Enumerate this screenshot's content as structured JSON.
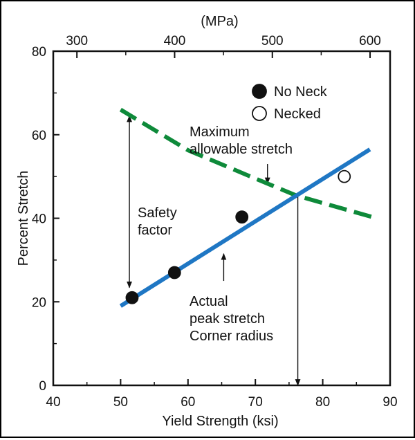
{
  "chart_data": {
    "type": "line",
    "x_axis_bottom": {
      "label": "Yield Strength (ksi)",
      "range": [
        40,
        90
      ],
      "ticks": [
        "40",
        "50",
        "60",
        "70",
        "80",
        "90"
      ]
    },
    "x_axis_top": {
      "label": "(MPa)",
      "range": [
        275.8,
        620.5
      ],
      "ticks": [
        "300",
        "400",
        "500",
        "600"
      ]
    },
    "y_axis": {
      "label": "Percent Stretch",
      "range": [
        0,
        80
      ],
      "ticks": [
        "0",
        "20",
        "40",
        "60",
        "80"
      ]
    },
    "grid": false,
    "legend": {
      "position": "top-right",
      "items": [
        {
          "label": "No Neck",
          "marker": "filled-circle"
        },
        {
          "label": "Necked",
          "marker": "open-circle"
        }
      ]
    },
    "series": [
      {
        "type": "line",
        "style": "dashed",
        "color": "#0e8a3a",
        "points": [
          [
            50,
            66
          ],
          [
            60,
            56.3
          ],
          [
            70,
            49.5
          ],
          [
            76,
            45.5
          ],
          [
            88,
            40
          ]
        ]
      },
      {
        "type": "line",
        "style": "solid",
        "color": "#1f77c4",
        "points": [
          [
            50,
            19
          ],
          [
            87,
            56.5
          ]
        ]
      },
      {
        "type": "scatter",
        "marker": "filled-circle",
        "points": [
          [
            51.7,
            21
          ],
          [
            58,
            27
          ],
          [
            68,
            40.3
          ]
        ]
      },
      {
        "type": "scatter",
        "marker": "open-circle",
        "points": [
          [
            83.2,
            50
          ]
        ]
      }
    ],
    "annotations": [
      {
        "text": [
          "Maximum",
          "allowable stretch"
        ]
      },
      {
        "text": [
          "Safety",
          "factor"
        ]
      },
      {
        "text": [
          "Actual",
          "peak stretch",
          "Corner radius"
        ]
      }
    ],
    "annotation_arrows": [
      {
        "name": "max-stretch-pointer",
        "from": [
          71.8,
          53
        ],
        "to": [
          71.8,
          48.3
        ]
      },
      {
        "name": "safety-factor-arrow",
        "from": [
          51.3,
          23.4
        ],
        "to": [
          51.3,
          64.5
        ],
        "double": true
      },
      {
        "name": "actual-stretch-pointer",
        "from": [
          65.3,
          25
        ],
        "to": [
          65.3,
          31.5
        ]
      },
      {
        "name": "intersection-drop-arrow",
        "from": [
          76.3,
          45.6
        ],
        "to": [
          76.3,
          0
        ]
      }
    ]
  }
}
